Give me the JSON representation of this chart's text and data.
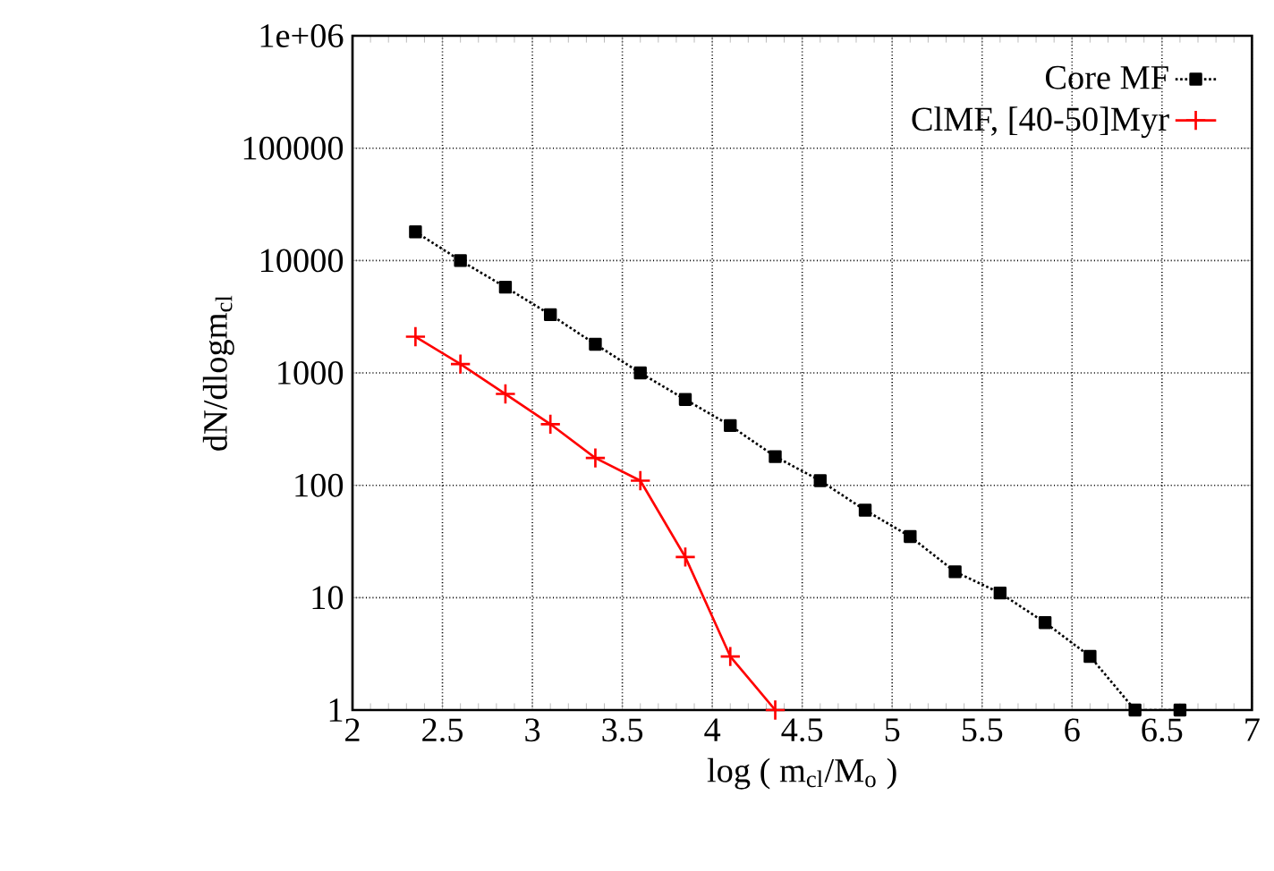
{
  "chart_data": {
    "type": "line",
    "xlabel": "log ( m$_{cl}$/M$_{o}$ )",
    "ylabel": "dN/dlogm$_{cl}$",
    "log": "y",
    "grid": true,
    "legend": "top right",
    "xlim": [
      2,
      7
    ],
    "xticks": [
      2,
      2.5,
      3,
      3.5,
      4,
      4.5,
      5,
      5.5,
      6,
      6.5,
      7
    ],
    "ylim": [
      1,
      1000000
    ],
    "yticks": [
      1,
      10,
      100,
      1000,
      10000,
      100000,
      {
        "value": 1000000,
        "label": "1e+06"
      }
    ],
    "series": [
      {
        "name": "Core MF",
        "color": "#000000",
        "marker": "square",
        "line_style": "dotted",
        "x": [
          2.35,
          2.6,
          2.85,
          3.1,
          3.35,
          3.6,
          3.85,
          4.1,
          4.35,
          4.6,
          4.85,
          5.1,
          5.35,
          5.6,
          5.85,
          6.1,
          6.35,
          6.6
        ],
        "values": [
          18000,
          10000,
          5800,
          3300,
          1800,
          1000,
          580,
          340,
          180,
          110,
          60,
          35,
          17,
          11,
          6,
          3,
          1,
          1
        ]
      },
      {
        "name": "ClMF, [40-50]Myr",
        "color": "#ff0000",
        "marker": "cross",
        "line_style": "solid",
        "x": [
          2.35,
          2.6,
          2.85,
          3.1,
          3.35,
          3.6,
          3.85,
          4.1,
          4.35
        ],
        "values": [
          2100,
          1200,
          650,
          350,
          175,
          110,
          23,
          3,
          1
        ]
      }
    ]
  }
}
